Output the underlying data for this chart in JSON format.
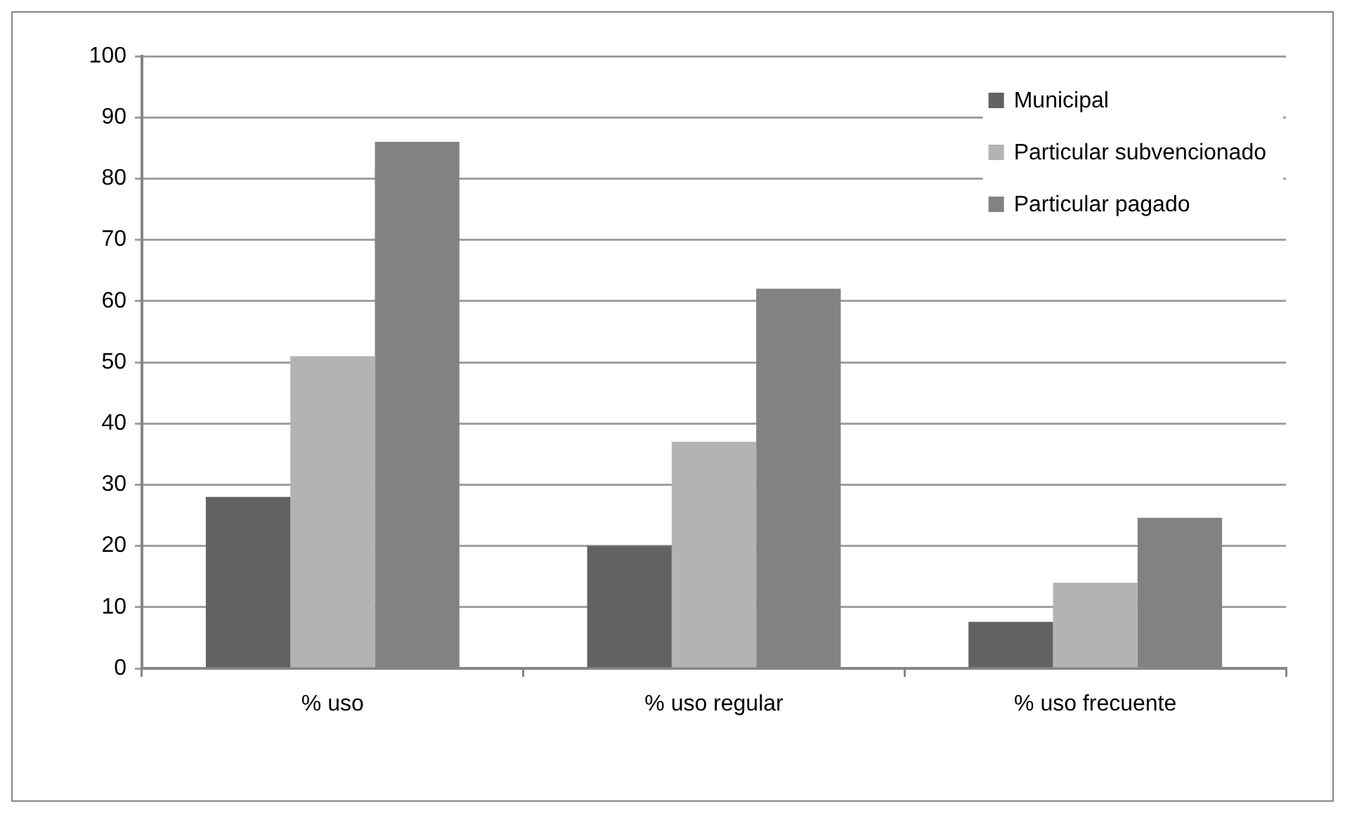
{
  "chart_data": {
    "type": "bar",
    "categories": [
      "% uso",
      "% uso regular",
      "% uso frecuente"
    ],
    "series": [
      {
        "name": "Municipal",
        "color": "#626262",
        "values": [
          28,
          20,
          7.6
        ]
      },
      {
        "name": "Particular subvencionado",
        "color": "#b3b3b3",
        "values": [
          51,
          37,
          14
        ]
      },
      {
        "name": "Particular pagado",
        "color": "#828282",
        "values": [
          86,
          62,
          24.6
        ]
      }
    ],
    "ylim": [
      0,
      100
    ],
    "yticks": [
      0,
      10,
      20,
      30,
      40,
      50,
      60,
      70,
      80,
      90,
      100
    ],
    "grid": "y",
    "legend": "top right"
  }
}
